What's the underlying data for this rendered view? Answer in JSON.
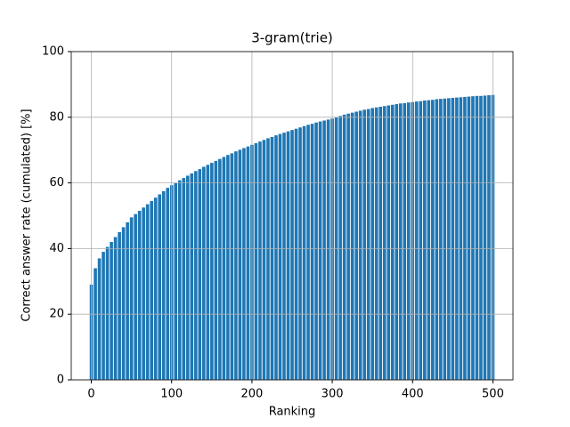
{
  "chart_data": {
    "type": "bar",
    "title": "3-gram(trie)",
    "xlabel": "Ranking",
    "ylabel": "Correct answer rate (cumulated) [%]",
    "x": [
      0,
      5,
      10,
      15,
      20,
      25,
      30,
      35,
      40,
      45,
      50,
      55,
      60,
      65,
      70,
      75,
      80,
      85,
      90,
      95,
      100,
      105,
      110,
      115,
      120,
      125,
      130,
      135,
      140,
      145,
      150,
      155,
      160,
      165,
      170,
      175,
      180,
      185,
      190,
      195,
      200,
      205,
      210,
      215,
      220,
      225,
      230,
      235,
      240,
      245,
      250,
      255,
      260,
      265,
      270,
      275,
      280,
      285,
      290,
      295,
      300,
      305,
      310,
      315,
      320,
      325,
      330,
      335,
      340,
      345,
      350,
      355,
      360,
      365,
      370,
      375,
      380,
      385,
      390,
      395,
      400,
      405,
      410,
      415,
      420,
      425,
      430,
      435,
      440,
      445,
      450,
      455,
      460,
      465,
      470,
      475,
      480,
      485,
      490,
      495,
      500
    ],
    "values": [
      29,
      34,
      37,
      39,
      40.5,
      42,
      43.5,
      45,
      46.5,
      48,
      49.5,
      50.5,
      51.5,
      52.5,
      53.5,
      54.5,
      55.5,
      56.5,
      57.5,
      58.5,
      59.3,
      60,
      60.8,
      61.5,
      62.2,
      62.9,
      63.6,
      64.2,
      64.9,
      65.5,
      66.1,
      66.7,
      67.3,
      67.9,
      68.5,
      69,
      69.6,
      70.1,
      70.6,
      71.1,
      71.6,
      72.1,
      72.6,
      73.1,
      73.6,
      74,
      74.5,
      74.9,
      75.3,
      75.7,
      76.1,
      76.5,
      76.9,
      77.3,
      77.7,
      78,
      78.4,
      78.7,
      79,
      79.3,
      79.6,
      80,
      80.4,
      80.8,
      81.1,
      81.4,
      81.7,
      82,
      82.3,
      82.5,
      82.8,
      83,
      83.2,
      83.4,
      83.6,
      83.8,
      84,
      84.2,
      84.3,
      84.5,
      84.6,
      84.8,
      84.9,
      85.1,
      85.2,
      85.3,
      85.5,
      85.6,
      85.7,
      85.8,
      85.9,
      86,
      86.1,
      86.2,
      86.3,
      86.4,
      86.5,
      86.5,
      86.6,
      86.7,
      86.8
    ],
    "color": "#1f77b4",
    "xlim": [
      -25,
      525
    ],
    "ylim": [
      0,
      100
    ],
    "xticks": [
      0,
      100,
      200,
      300,
      400,
      500
    ],
    "yticks": [
      0,
      20,
      40,
      60,
      80,
      100
    ],
    "grid": true
  }
}
